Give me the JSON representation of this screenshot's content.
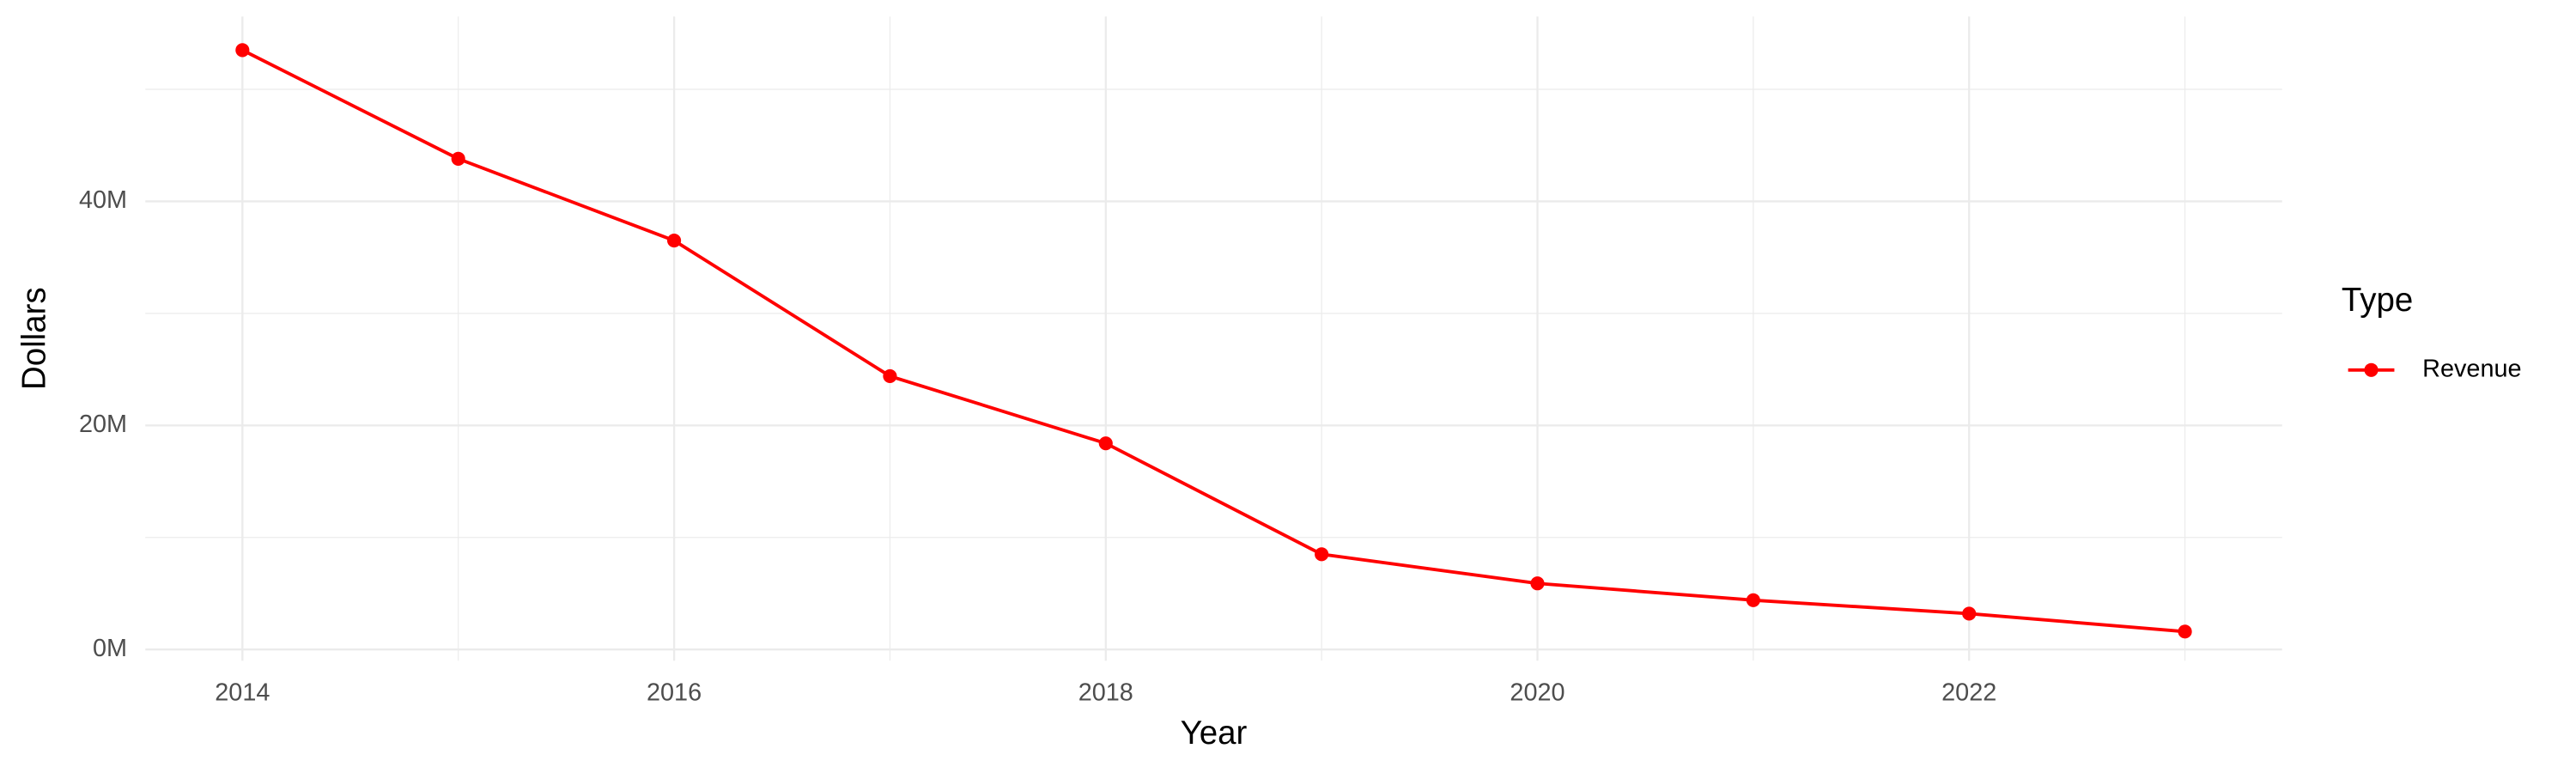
{
  "chart_data": {
    "type": "line",
    "x_label": "Year",
    "y_label": "Dollars",
    "x": [
      2014,
      2015,
      2016,
      2017,
      2018,
      2019,
      2020,
      2021,
      2022,
      2023
    ],
    "series": [
      {
        "name": "Revenue",
        "color": "#ff0000",
        "values": [
          53500000,
          43800000,
          36500000,
          24400000,
          18400000,
          8500000,
          5900000,
          4400000,
          3200000,
          1600000
        ]
      }
    ],
    "legend_title": "Type",
    "legend_position": "right",
    "xlim": [
      2013.55,
      2023.45
    ],
    "xticks": [
      2014,
      2016,
      2018,
      2020,
      2022
    ],
    "xminor": [
      2015,
      2017,
      2019,
      2021,
      2023
    ],
    "ylim": [
      -1000000,
      56500000
    ],
    "yticks": [
      {
        "value": 0,
        "label": "0M"
      },
      {
        "value": 20000000,
        "label": "20M"
      },
      {
        "value": 40000000,
        "label": "40M"
      }
    ],
    "yminor": [
      10000000,
      30000000,
      50000000
    ],
    "grid": true
  }
}
